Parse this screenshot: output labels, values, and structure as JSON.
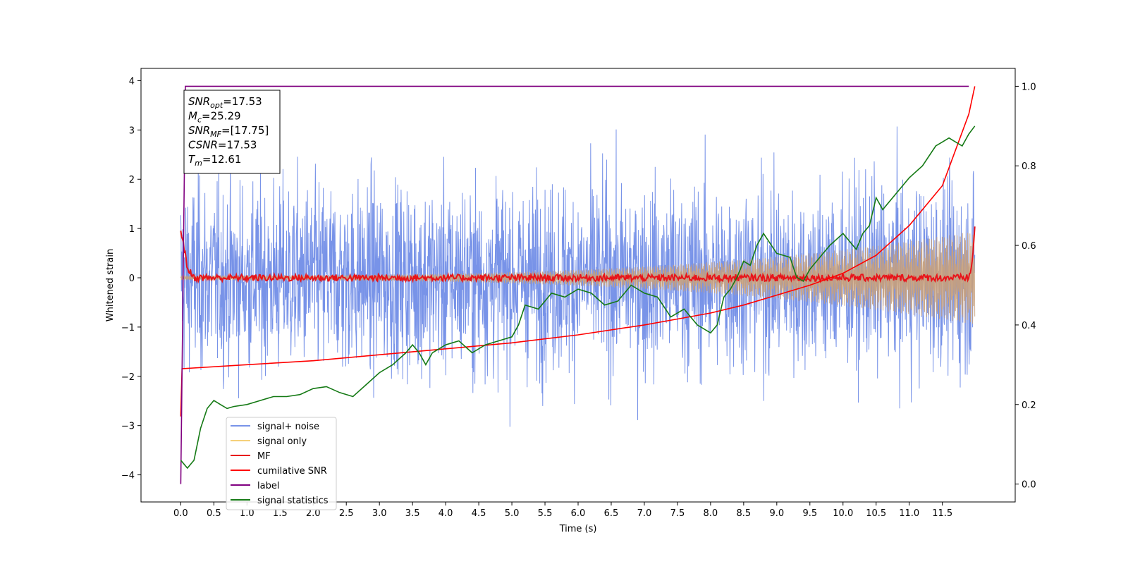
{
  "chart_data": {
    "type": "line",
    "xlabel": "Time (s)",
    "ylabel": "Whitened strain",
    "xlim": [
      -0.6,
      12.6
    ],
    "ylim": [
      -4.55,
      4.25
    ],
    "y2lim": [
      -0.045,
      1.045
    ],
    "xticks": [
      "0.0",
      "0.5",
      "1.0",
      "1.5",
      "2.0",
      "2.5",
      "3.0",
      "3.5",
      "4.0",
      "4.5",
      "5.0",
      "5.5",
      "6.0",
      "6.5",
      "7.0",
      "7.5",
      "8.0",
      "8.5",
      "9.0",
      "9.5",
      "10.0",
      "10.5",
      "11.0",
      "11.5"
    ],
    "yticks": [
      "4",
      "3",
      "2",
      "1",
      "0",
      "−1",
      "−2",
      "−3",
      "−4"
    ],
    "y2ticks": [
      "1.0",
      "0.8",
      "0.6",
      "0.4",
      "0.2",
      "0.0"
    ],
    "grid": false,
    "legend_position": "lower-left",
    "annotation": {
      "lines": [
        {
          "base": "SNR",
          "sub": "opt",
          "value": "=17.53"
        },
        {
          "base": "M",
          "sub": "c",
          "value": "=25.29"
        },
        {
          "base": "SNR",
          "sub": "MF",
          "value": "=[17.75]"
        },
        {
          "base": "CSNR",
          "sub": "",
          "value": "=17.53"
        },
        {
          "base": "T",
          "sub": "m",
          "value": "=12.61"
        }
      ]
    },
    "series": [
      {
        "name": "signal+ noise",
        "color": "#7893e8",
        "axis": "left",
        "kind": "noise",
        "amplitude_std": 1.0,
        "x_range": [
          0.0,
          11.99
        ]
      },
      {
        "name": "signal only",
        "color": "#f5d07a",
        "axis": "left",
        "kind": "chirp",
        "envelope_start": 0.05,
        "envelope_end": 0.95,
        "x_range": [
          0.0,
          11.99
        ]
      },
      {
        "name": "MF",
        "color": "#e8141a",
        "axis": "left",
        "kind": "mf",
        "x": [
          0.0,
          0.1,
          0.2,
          11.9,
          11.95,
          11.99
        ],
        "y": [
          1.0,
          0.2,
          0.0,
          0.0,
          0.3,
          1.0
        ]
      },
      {
        "name": "cumilative SNR",
        "color": "#ff0000",
        "axis": "right",
        "x": [
          0.0,
          0.02,
          1.0,
          2.0,
          3.0,
          4.0,
          5.0,
          6.0,
          7.0,
          7.5,
          8.0,
          8.5,
          9.0,
          9.5,
          10.0,
          10.5,
          11.0,
          11.5,
          11.9,
          11.99
        ],
        "y": [
          0.17,
          0.29,
          0.3,
          0.31,
          0.325,
          0.34,
          0.355,
          0.375,
          0.4,
          0.415,
          0.43,
          0.45,
          0.475,
          0.5,
          0.53,
          0.575,
          0.65,
          0.75,
          0.93,
          1.0
        ]
      },
      {
        "name": "label",
        "color": "#800080",
        "axis": "right",
        "x": [
          0.0,
          0.07,
          11.9
        ],
        "y": [
          0.0,
          1.0,
          1.0
        ]
      },
      {
        "name": "signal statistics",
        "color": "#157a15",
        "axis": "right",
        "x": [
          0.0,
          0.1,
          0.2,
          0.3,
          0.4,
          0.5,
          0.6,
          0.7,
          0.8,
          1.0,
          1.2,
          1.4,
          1.6,
          1.8,
          2.0,
          2.2,
          2.4,
          2.6,
          2.8,
          3.0,
          3.2,
          3.4,
          3.5,
          3.6,
          3.7,
          3.8,
          3.9,
          4.0,
          4.2,
          4.4,
          4.6,
          4.8,
          5.0,
          5.1,
          5.2,
          5.4,
          5.6,
          5.8,
          6.0,
          6.2,
          6.4,
          6.6,
          6.8,
          7.0,
          7.2,
          7.4,
          7.6,
          7.8,
          8.0,
          8.1,
          8.2,
          8.3,
          8.4,
          8.5,
          8.6,
          8.7,
          8.8,
          9.0,
          9.2,
          9.3,
          9.4,
          9.5,
          9.6,
          9.8,
          10.0,
          10.2,
          10.3,
          10.4,
          10.5,
          10.6,
          10.8,
          11.0,
          11.2,
          11.4,
          11.5,
          11.6,
          11.7,
          11.8,
          11.9,
          11.99
        ],
        "y": [
          0.06,
          0.04,
          0.06,
          0.14,
          0.19,
          0.21,
          0.2,
          0.19,
          0.195,
          0.2,
          0.21,
          0.22,
          0.22,
          0.225,
          0.24,
          0.245,
          0.23,
          0.22,
          0.25,
          0.28,
          0.3,
          0.33,
          0.35,
          0.33,
          0.3,
          0.33,
          0.34,
          0.35,
          0.36,
          0.33,
          0.35,
          0.36,
          0.37,
          0.4,
          0.45,
          0.44,
          0.48,
          0.47,
          0.49,
          0.48,
          0.45,
          0.46,
          0.5,
          0.48,
          0.47,
          0.42,
          0.44,
          0.4,
          0.38,
          0.4,
          0.47,
          0.49,
          0.52,
          0.56,
          0.55,
          0.6,
          0.63,
          0.58,
          0.57,
          0.52,
          0.51,
          0.54,
          0.56,
          0.6,
          0.63,
          0.59,
          0.63,
          0.65,
          0.72,
          0.69,
          0.73,
          0.77,
          0.8,
          0.85,
          0.86,
          0.87,
          0.86,
          0.85,
          0.88,
          0.9
        ]
      }
    ]
  }
}
